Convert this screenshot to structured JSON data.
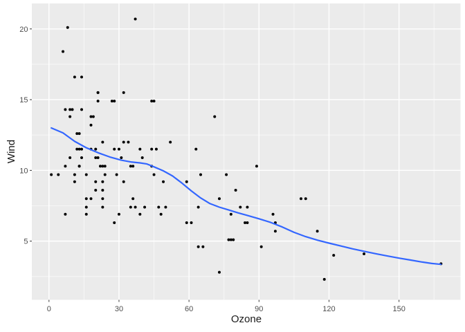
{
  "chart_data": {
    "type": "scatter",
    "title": "",
    "xlabel": "Ozone",
    "ylabel": "Wind",
    "x_ticks": [
      0,
      30,
      60,
      90,
      120,
      150
    ],
    "y_ticks": [
      5,
      10,
      15,
      20
    ],
    "x_minor_ticks": [
      15,
      45,
      75,
      105,
      135,
      165
    ],
    "y_minor_ticks": [
      2.5,
      7.5,
      12.5,
      17.5
    ],
    "x_domain": [
      -7.35,
      176.35
    ],
    "y_domain": [
      0.85,
      21.8
    ],
    "grid": "major-and-minor-white-on-grey",
    "legend": "none",
    "theme": {
      "panel_bg": "#EBEBEB",
      "outer_bg": "#FFFFFF",
      "grid_major_color": "#FFFFFF",
      "grid_minor_color": "#FFFFFF",
      "grid_minor_opacity": 0.65,
      "point_color": "#000000",
      "smooth_line_color": "#3366FF",
      "tick_label_color": "#4D4D4D",
      "tick_mark_color": "#333333",
      "axis_title_color": "#1A1A1A"
    },
    "series": [
      {
        "name": "observations",
        "geom": "point",
        "points": [
          [
            41,
            7.4
          ],
          [
            36,
            8.0
          ],
          [
            12,
            12.6
          ],
          [
            18,
            11.5
          ],
          [
            28,
            14.9
          ],
          [
            23,
            8.6
          ],
          [
            19,
            13.8
          ],
          [
            8,
            20.1
          ],
          [
            7,
            6.9
          ],
          [
            16,
            9.7
          ],
          [
            11,
            9.2
          ],
          [
            14,
            10.9
          ],
          [
            18,
            13.2
          ],
          [
            14,
            11.5
          ],
          [
            34,
            12.0
          ],
          [
            6,
            18.4
          ],
          [
            30,
            11.5
          ],
          [
            11,
            9.7
          ],
          [
            1,
            9.7
          ],
          [
            11,
            16.6
          ],
          [
            4,
            9.7
          ],
          [
            32,
            12.0
          ],
          [
            23,
            12.0
          ],
          [
            45,
            14.9
          ],
          [
            115,
            5.7
          ],
          [
            37,
            7.4
          ],
          [
            29,
            9.7
          ],
          [
            71,
            13.8
          ],
          [
            39,
            11.5
          ],
          [
            23,
            8.0
          ],
          [
            21,
            14.9
          ],
          [
            37,
            20.7
          ],
          [
            20,
            9.2
          ],
          [
            12,
            11.5
          ],
          [
            13,
            10.3
          ],
          [
            135,
            4.1
          ],
          [
            49,
            9.2
          ],
          [
            32,
            9.2
          ],
          [
            64,
            4.6
          ],
          [
            40,
            10.9
          ],
          [
            77,
            5.1
          ],
          [
            97,
            6.3
          ],
          [
            97,
            5.7
          ],
          [
            85,
            7.4
          ],
          [
            10,
            14.3
          ],
          [
            27,
            14.9
          ],
          [
            7,
            14.3
          ],
          [
            48,
            6.9
          ],
          [
            35,
            10.3
          ],
          [
            61,
            6.3
          ],
          [
            79,
            5.1
          ],
          [
            63,
            11.5
          ],
          [
            16,
            6.9
          ],
          [
            80,
            8.6
          ],
          [
            108,
            8.0
          ],
          [
            20,
            8.6
          ],
          [
            52,
            12.0
          ],
          [
            82,
            7.4
          ],
          [
            50,
            7.4
          ],
          [
            64,
            7.4
          ],
          [
            59,
            9.2
          ],
          [
            39,
            6.9
          ],
          [
            9,
            13.8
          ],
          [
            16,
            7.4
          ],
          [
            78,
            6.9
          ],
          [
            35,
            7.4
          ],
          [
            66,
            4.6
          ],
          [
            122,
            4.0
          ],
          [
            89,
            10.3
          ],
          [
            110,
            8.0
          ],
          [
            44,
            11.5
          ],
          [
            28,
            11.5
          ],
          [
            65,
            9.7
          ],
          [
            22,
            10.3
          ],
          [
            59,
            6.3
          ],
          [
            23,
            7.4
          ],
          [
            31,
            10.9
          ],
          [
            44,
            10.3
          ],
          [
            21,
            15.5
          ],
          [
            9,
            14.3
          ],
          [
            45,
            9.7
          ],
          [
            168,
            3.4
          ],
          [
            73,
            8.0
          ],
          [
            76,
            9.7
          ],
          [
            118,
            2.3
          ],
          [
            84,
            6.3
          ],
          [
            85,
            6.3
          ],
          [
            96,
            6.9
          ],
          [
            78,
            5.1
          ],
          [
            73,
            2.8
          ],
          [
            91,
            4.6
          ],
          [
            47,
            7.4
          ],
          [
            32,
            15.5
          ],
          [
            20,
            10.9
          ],
          [
            23,
            10.3
          ],
          [
            21,
            10.9
          ],
          [
            24,
            9.7
          ],
          [
            44,
            14.9
          ],
          [
            21,
            15.5
          ],
          [
            28,
            6.3
          ],
          [
            9,
            10.9
          ],
          [
            13,
            11.5
          ],
          [
            46,
            11.5
          ],
          [
            18,
            13.8
          ],
          [
            13,
            10.3
          ],
          [
            24,
            10.3
          ],
          [
            16,
            8.0
          ],
          [
            13,
            12.6
          ],
          [
            23,
            9.2
          ],
          [
            36,
            10.3
          ],
          [
            7,
            10.3
          ],
          [
            14,
            16.6
          ],
          [
            30,
            6.9
          ],
          [
            14,
            14.3
          ],
          [
            18,
            8.0
          ],
          [
            20,
            11.5
          ]
        ]
      },
      {
        "name": "loess-smooth",
        "geom": "line",
        "points": [
          [
            1,
            13.0
          ],
          [
            6,
            12.65
          ],
          [
            11,
            12.05
          ],
          [
            16,
            11.6
          ],
          [
            21,
            11.25
          ],
          [
            26,
            10.95
          ],
          [
            31,
            10.72
          ],
          [
            35,
            10.6
          ],
          [
            39,
            10.53
          ],
          [
            42,
            10.45
          ],
          [
            45,
            10.25
          ],
          [
            49,
            9.97
          ],
          [
            53,
            9.6
          ],
          [
            57,
            9.1
          ],
          [
            61,
            8.55
          ],
          [
            65,
            8.05
          ],
          [
            69,
            7.65
          ],
          [
            73,
            7.4
          ],
          [
            77,
            7.2
          ],
          [
            81,
            7.0
          ],
          [
            85,
            6.82
          ],
          [
            90,
            6.58
          ],
          [
            95,
            6.32
          ],
          [
            100,
            6.0
          ],
          [
            105,
            5.62
          ],
          [
            110,
            5.32
          ],
          [
            115,
            5.07
          ],
          [
            120,
            4.86
          ],
          [
            125,
            4.66
          ],
          [
            130,
            4.46
          ],
          [
            135,
            4.28
          ],
          [
            140,
            4.11
          ],
          [
            145,
            3.95
          ],
          [
            150,
            3.8
          ],
          [
            155,
            3.66
          ],
          [
            160,
            3.52
          ],
          [
            164,
            3.42
          ],
          [
            168,
            3.36
          ]
        ]
      }
    ]
  }
}
